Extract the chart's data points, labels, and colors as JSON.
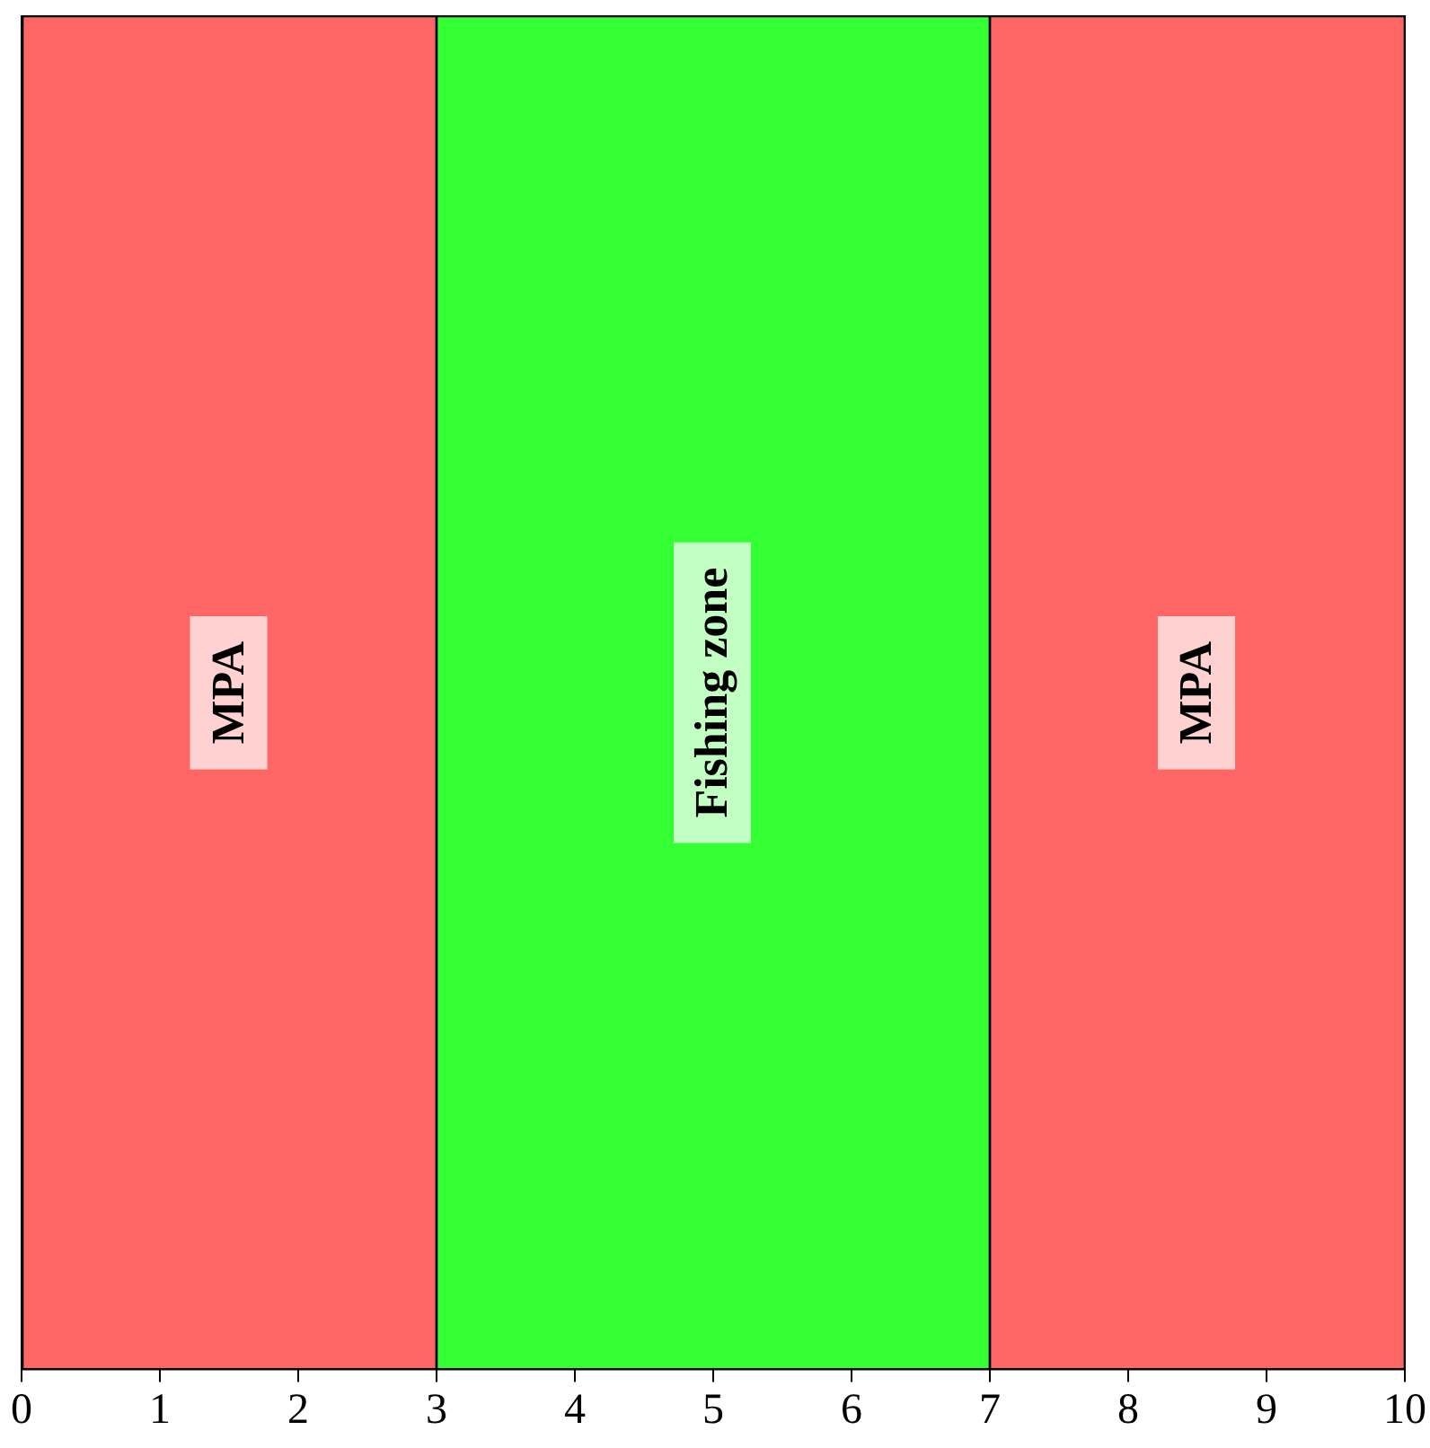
{
  "chart_data": {
    "type": "bar",
    "orientation": "horizontal",
    "stacked": true,
    "categories": [
      null
    ],
    "xlim": [
      0,
      10
    ],
    "xticks": [
      0,
      1,
      2,
      3,
      4,
      5,
      6,
      7,
      8,
      9,
      10
    ],
    "tick_labels": "x",
    "series": [
      {
        "name": "MPA",
        "color": "#ff6666",
        "values": [
          3
        ]
      },
      {
        "name": "Fishing zone",
        "color": "#33ff33",
        "values": [
          4
        ]
      },
      {
        "name": "MPA",
        "color": "#ff6666",
        "values": [
          3
        ]
      }
    ]
  }
}
